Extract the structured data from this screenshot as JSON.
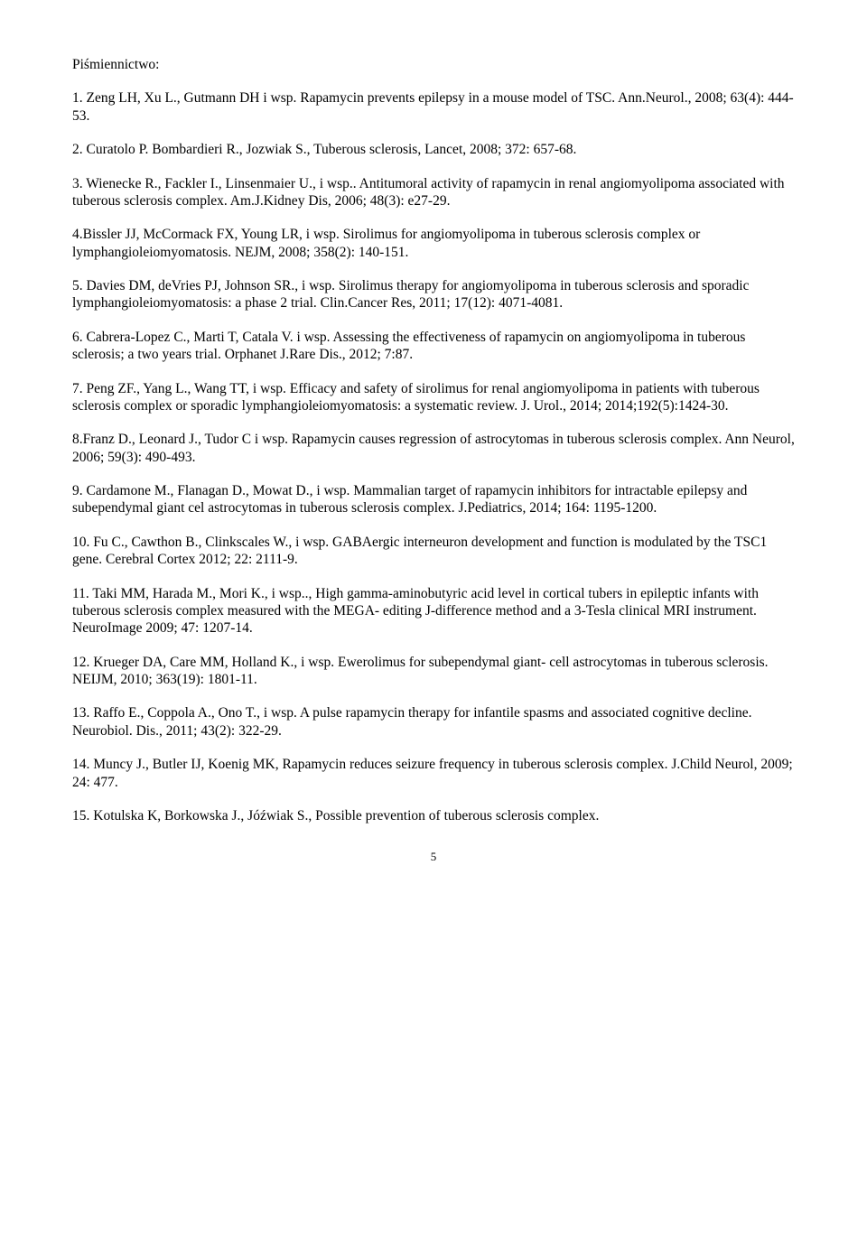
{
  "title": "Piśmiennictwo:",
  "references": [
    "1. Zeng LH, Xu L., Gutmann DH i wsp. Rapamycin prevents epilepsy in a mouse model of TSC. Ann.Neurol., 2008; 63(4): 444-53.",
    "2. Curatolo P. Bombardieri R., Jozwiak S., Tuberous sclerosis, Lancet, 2008; 372: 657-68.",
    "3. Wienecke R., Fackler I., Linsenmaier U., i wsp.. Antitumoral activity of rapamycin in renal angiomyolipoma associated with tuberous sclerosis complex. Am.J.Kidney Dis, 2006; 48(3): e27-29.",
    "4.Bissler JJ, McCormack FX, Young LR, i wsp. Sirolimus for angiomyolipoma in tuberous sclerosis complex or lymphangioleiomyomatosis. NEJM, 2008; 358(2): 140-151.",
    "5. Davies DM, deVries PJ, Johnson SR., i wsp. Sirolimus therapy for angiomyolipoma in tuberous sclerosis and sporadic lymphangioleiomyomatosis: a phase 2 trial. Clin.Cancer Res, 2011; 17(12): 4071-4081.",
    "6. Cabrera-Lopez C., Marti T, Catala V. i wsp. Assessing the effectiveness of rapamycin on angiomyolipoma in tuberous sclerosis; a two years trial. Orphanet J.Rare Dis., 2012; 7:87.",
    "7. Peng ZF., Yang L., Wang TT, i wsp. Efficacy and safety of sirolimus for renal angiomyolipoma in patients with tuberous sclerosis complex or sporadic lymphangioleiomyomatosis: a systematic review. J. Urol., 2014; 2014;192(5):1424-30.",
    "8.Franz D., Leonard J., Tudor C i wsp. Rapamycin causes regression of astrocytomas in tuberous sclerosis complex. Ann Neurol, 2006; 59(3): 490-493.",
    "9. Cardamone M., Flanagan D., Mowat D., i wsp. Mammalian target of rapamycin inhibitors for intractable epilepsy and subependymal giant cel astrocytomas in tuberous sclerosis complex. J.Pediatrics, 2014; 164: 1195-1200.",
    "10. Fu C., Cawthon B., Clinkscales W., i wsp. GABAergic interneuron development and function is modulated by the TSC1 gene. Cerebral Cortex 2012; 22: 2111-9.",
    "11. Taki MM, Harada M., Mori K., i wsp.., High gamma-aminobutyric acid level in cortical tubers in epileptic infants with tuberous sclerosis complex measured with the MEGA- editing J-difference method and a 3-Tesla clinical MRI instrument. NeuroImage 2009; 47: 1207-14.",
    "12. Krueger DA, Care MM, Holland K., i wsp. Ewerolimus for subependymal giant- cell astrocytomas in tuberous sclerosis. NEIJM, 2010; 363(19): 1801-11.",
    "13. Raffo E., Coppola A., Ono T., i wsp. A pulse rapamycin therapy for infantile spasms and associated cognitive decline. Neurobiol. Dis., 2011; 43(2): 322-29.",
    "14. Muncy J., Butler IJ, Koenig MK, Rapamycin reduces seizure frequency in tuberous sclerosis complex. J.Child Neurol, 2009; 24: 477.",
    "15. Kotulska K, Borkowska J., Jóźwiak S., Possible prevention of tuberous sclerosis complex."
  ],
  "page_number": "5"
}
